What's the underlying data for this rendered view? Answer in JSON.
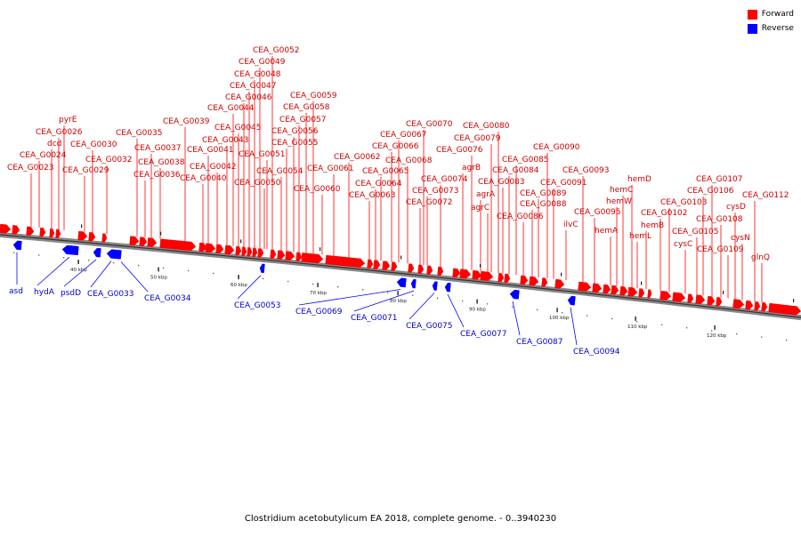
{
  "colors": {
    "forward": "#ff0000",
    "reverse": "#0000ff",
    "forward_label": "#cc0000",
    "reverse_label": "#0000cc",
    "backbone": "#888888"
  },
  "legend": [
    {
      "label": "Forward",
      "color": "#ff0000"
    },
    {
      "label": "Reverse",
      "color": "#0000ff"
    }
  ],
  "caption": "Clostridium acetobutylicum EA 2018, complete genome. - 0..3940230",
  "genome_map": {
    "type": "linear-genome-map",
    "scale_unit": "kbp",
    "ticks": [
      40,
      50,
      60,
      70,
      80,
      90,
      100,
      110,
      120
    ],
    "tick_labels": [
      "40 kbp",
      "50 kbp",
      "60 kbp",
      "70 kbp",
      "80 kbp",
      "90 kbp",
      "100 kbp",
      "110 kbp",
      "120 kbp"
    ],
    "forward_genes": [
      "CEA_G0023",
      "CEA_G0024",
      "dcd",
      "CEA_G0026",
      "pyrE",
      "CEA_G0029",
      "CEA_G0030",
      "CEA_G0032",
      "CEA_G0035",
      "CEA_G0036",
      "CEA_G0037",
      "CEA_G0038",
      "CEA_G0039",
      "CEA_G0040",
      "CEA_G0041",
      "CEA_G0042",
      "CEA_G0043",
      "CEA_G0044",
      "CEA_G0045",
      "CEA_G0046",
      "CEA_G0047",
      "CEA_G0048",
      "CEA_G0049",
      "CEA_G0050",
      "CEA_G0051",
      "CEA_G0052",
      "CEA_G0054",
      "CEA_G0055",
      "CEA_G0056",
      "CEA_G0057",
      "CEA_G0058",
      "CEA_G0059",
      "CEA_G0060",
      "CEA_G0061",
      "CEA_G0062",
      "CEA_G0063",
      "CEA_G0064",
      "CEA_G0065",
      "CEA_G0066",
      "CEA_G0067",
      "CEA_G0068",
      "CEA_G0070",
      "CEA_G0072",
      "CEA_G0073",
      "CEA_G0074",
      "agrB",
      "CEA_G0076",
      "agrA",
      "agrC",
      "CEA_G0079",
      "CEA_G0080",
      "CEA_G0083",
      "CEA_G0084",
      "CEA_G0085",
      "CEA_G0086",
      "CEA_G0088",
      "CEA_G0089",
      "CEA_G0090",
      "ilvC",
      "CEA_G0091",
      "CEA_G0093",
      "CEA_G0095",
      "hemA",
      "hemW",
      "hemC",
      "hemD",
      "hemL",
      "hemB",
      "CEA_G0102",
      "CEA_G0103",
      "cysC",
      "CEA_G0105",
      "CEA_G0106",
      "CEA_G0107",
      "CEA_G0108",
      "CEA_G0109",
      "cysD",
      "cysN",
      "CEA_G0112",
      "glnQ"
    ],
    "reverse_genes": [
      "asd",
      "hydA",
      "psdD",
      "CEA_G0033",
      "CEA_G0034",
      "CEA_G0053",
      "CEA_G0069",
      "CEA_G0071",
      "CEA_G0075",
      "CEA_G0077",
      "CEA_G0087",
      "CEA_G0094"
    ]
  }
}
